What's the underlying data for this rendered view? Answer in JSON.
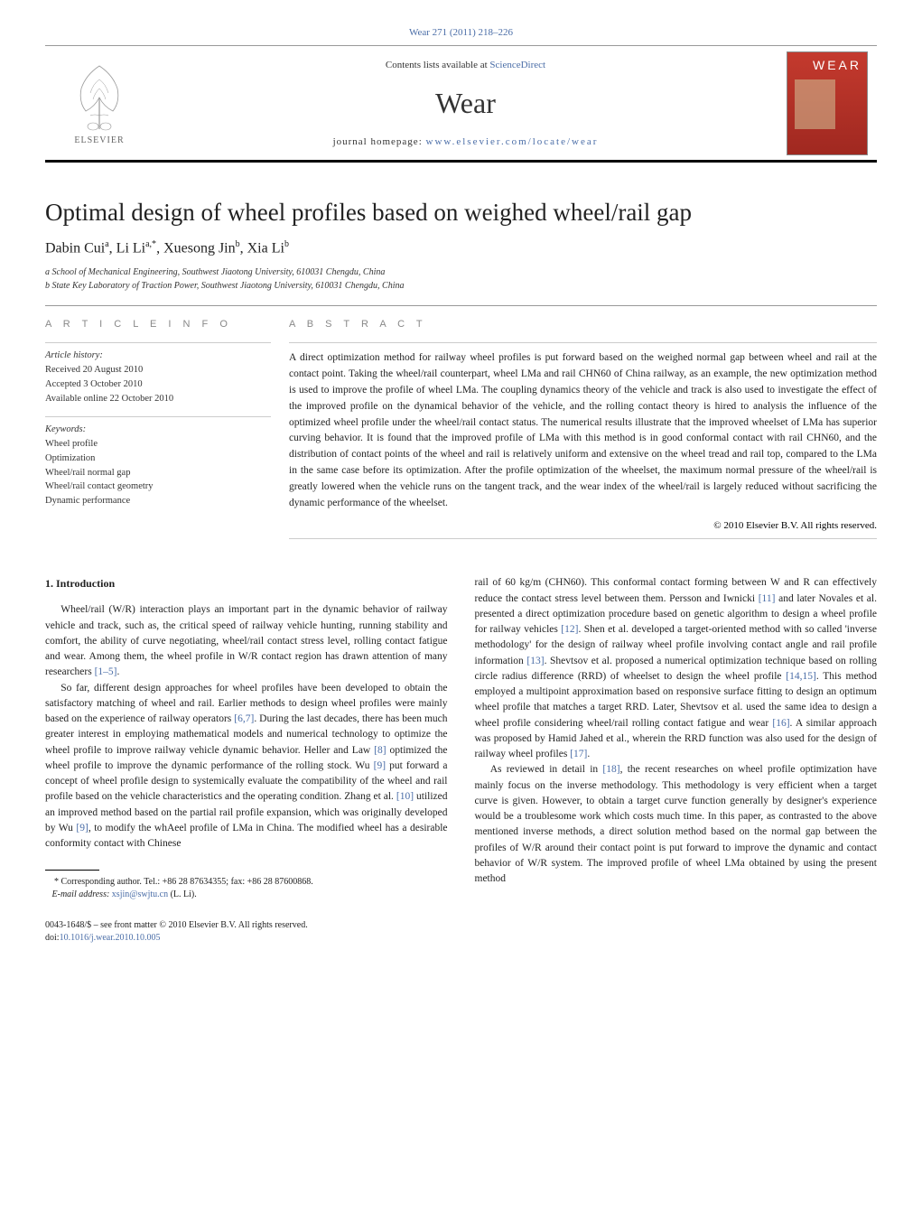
{
  "header": {
    "top_link": "Wear 271 (2011) 218–226",
    "contents_prefix": "Contents lists available at ",
    "contents_link": "ScienceDirect",
    "journal_name": "Wear",
    "homepage_prefix": "journal homepage: ",
    "homepage_url": "www.elsevier.com/locate/wear",
    "elsevier_label": "ELSEVIER",
    "cover_label": "WEAR"
  },
  "title": "Optimal design of wheel profiles based on weighed wheel/rail gap",
  "authors_html": "Dabin Cui<sup>a</sup>, Li Li<sup>a,*</sup>, Xuesong Jin<sup>b</sup>, Xia Li<sup>b</sup>",
  "affiliations": [
    "a School of Mechanical Engineering, Southwest Jiaotong University, 610031 Chengdu, China",
    "b State Key Laboratory of Traction Power, Southwest Jiaotong University, 610031 Chengdu, China"
  ],
  "info": {
    "heading": "A R T I C L E   I N F O",
    "history_label": "Article history:",
    "history": [
      "Received 20 August 2010",
      "Accepted 3 October 2010",
      "Available online 22 October 2010"
    ],
    "keywords_label": "Keywords:",
    "keywords": [
      "Wheel profile",
      "Optimization",
      "Wheel/rail normal gap",
      "Wheel/rail contact geometry",
      "Dynamic performance"
    ]
  },
  "abstract": {
    "heading": "A B S T R A C T",
    "text": "A direct optimization method for railway wheel profiles is put forward based on the weighed normal gap between wheel and rail at the contact point. Taking the wheel/rail counterpart, wheel LMa and rail CHN60 of China railway, as an example, the new optimization method is used to improve the profile of wheel LMa. The coupling dynamics theory of the vehicle and track is also used to investigate the effect of the improved profile on the dynamical behavior of the vehicle, and the rolling contact theory is hired to analysis the influence of the optimized wheel profile under the wheel/rail contact status. The numerical results illustrate that the improved wheelset of LMa has superior curving behavior. It is found that the improved profile of LMa with this method is in good conformal contact with rail CHN60, and the distribution of contact points of the wheel and rail is relatively uniform and extensive on the wheel tread and rail top, compared to the LMa in the same case before its optimization. After the profile optimization of the wheelset, the maximum normal pressure of the wheel/rail is greatly lowered when the vehicle runs on the tangent track, and the wear index of the wheel/rail is largely reduced without sacrificing the dynamic performance of the wheelset.",
    "copyright": "© 2010 Elsevier B.V. All rights reserved."
  },
  "sections": {
    "intro_heading": "1.  Introduction",
    "col1_p1": "Wheel/rail (W/R) interaction plays an important part in the dynamic behavior of railway vehicle and track, such as, the critical speed of railway vehicle hunting, running stability and comfort, the ability of curve negotiating, wheel/rail contact stress level, rolling contact fatigue and wear. Among them, the wheel profile in W/R contact region has drawn attention of many researchers ",
    "col1_p1_ref": "[1–5]",
    "col1_p1_end": ".",
    "col1_p2a": "So far, different design approaches for wheel profiles have been developed to obtain the satisfactory matching of wheel and rail. Earlier methods to design wheel profiles were mainly based on the experience of railway operators ",
    "col1_p2_ref1": "[6,7]",
    "col1_p2b": ". During the last decades, there has been much greater interest in employing mathematical models and numerical technology to optimize the wheel profile to improve railway vehicle dynamic behavior. Heller and Law ",
    "col1_p2_ref2": "[8]",
    "col1_p2c": " optimized the wheel profile to improve the dynamic performance of the rolling stock. Wu ",
    "col1_p2_ref3": "[9]",
    "col1_p2d": " put forward a concept of wheel profile design to systemically evaluate the compatibility of the wheel and rail profile based on the vehicle characteristics and the operating condition. Zhang et al. ",
    "col1_p2_ref4": "[10]",
    "col1_p2e": " utilized an improved method based on the partial rail profile expansion, which was originally developed by Wu ",
    "col1_p2_ref5": "[9]",
    "col1_p2f": ", to modify the whAeel profile of LMa in China. The modified wheel has a desirable conformity contact with Chinese",
    "col2_p1a": "rail of 60 kg/m (CHN60). This conformal contact forming between W and R can effectively reduce the contact stress level between them. Persson and Iwnicki ",
    "col2_p1_ref1": "[11]",
    "col2_p1b": " and later Novales et al. presented a direct optimization procedure based on genetic algorithm to design a wheel profile for railway vehicles ",
    "col2_p1_ref2": "[12]",
    "col2_p1c": ". Shen et al. developed a target-oriented method with so called 'inverse methodology' for the design of railway wheel profile involving contact angle and rail profile information ",
    "col2_p1_ref3": "[13]",
    "col2_p1d": ". Shevtsov et al. proposed a numerical optimization technique based on rolling circle radius difference (RRD) of wheelset to design the wheel profile ",
    "col2_p1_ref4": "[14,15]",
    "col2_p1e": ". This method employed a multipoint approximation based on responsive surface fitting to design an optimum wheel profile that matches a target RRD. Later, Shevtsov et al. used the same idea to design a wheel profile considering wheel/rail rolling contact fatigue and wear ",
    "col2_p1_ref5": "[16]",
    "col2_p1f": ". A similar approach was proposed by Hamid Jahed et al., wherein the RRD function was also used for the design of railway wheel profiles ",
    "col2_p1_ref6": "[17]",
    "col2_p1g": ".",
    "col2_p2a": "As reviewed in detail in ",
    "col2_p2_ref1": "[18]",
    "col2_p2b": ", the recent researches on wheel profile optimization have mainly focus on the inverse methodology. This methodology is very efficient when a target curve is given. However, to obtain a target curve function generally by designer's experience would be a troublesome work which costs much time. In this paper, as contrasted to the above mentioned inverse methods, a direct solution method based on the normal gap between the profiles of W/R around their contact point is put forward to improve the dynamic and contact behavior of W/R system. The improved profile of wheel LMa obtained by using the present method"
  },
  "footnote": {
    "marker": "*",
    "text": " Corresponding author. Tel.: +86 28 87634355; fax: +86 28 87600868.",
    "email_label": "E-mail address: ",
    "email": "xsjin@swjtu.cn",
    "email_suffix": " (L. Li)."
  },
  "footer": {
    "line1": "0043-1648/$ – see front matter © 2010 Elsevier B.V. All rights reserved.",
    "doi_label": "doi:",
    "doi": "10.1016/j.wear.2010.10.005"
  }
}
